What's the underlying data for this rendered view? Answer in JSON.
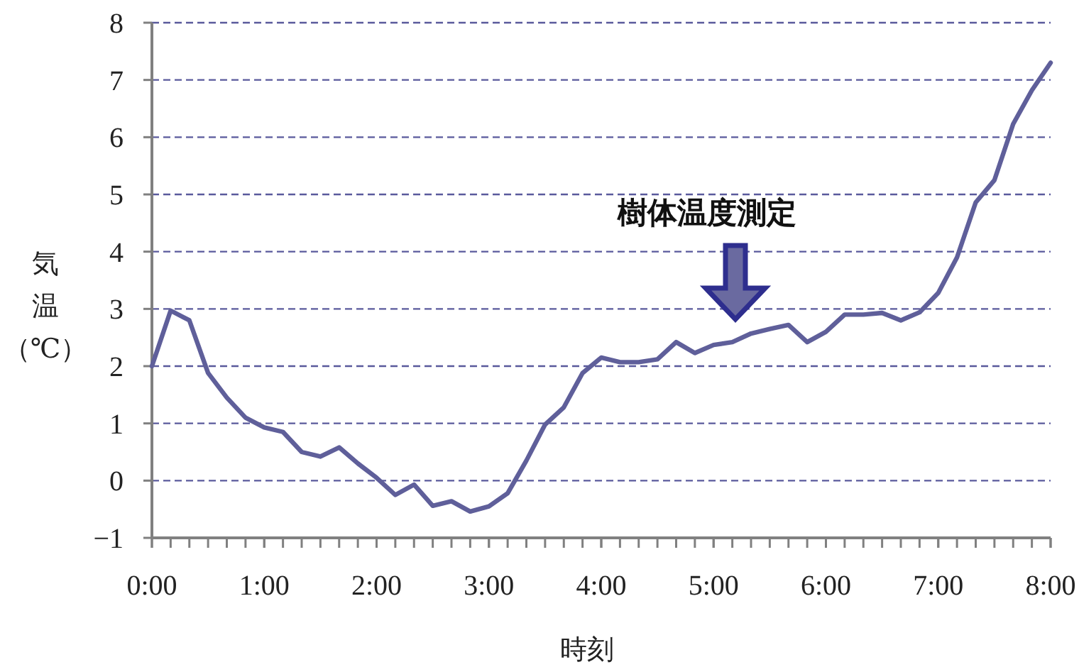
{
  "chart_data": {
    "type": "line",
    "xlabel": "時刻",
    "ylabel": "気温（℃）",
    "x": [
      0,
      0.1667,
      0.3333,
      0.5,
      0.6667,
      0.8333,
      1,
      1.1667,
      1.3333,
      1.5,
      1.6667,
      1.8333,
      2,
      2.1667,
      2.3333,
      2.5,
      2.6667,
      2.8333,
      3,
      3.1667,
      3.3333,
      3.5,
      3.6667,
      3.8333,
      4,
      4.1667,
      4.3333,
      4.5,
      4.6667,
      4.8333,
      5,
      5.1667,
      5.3333,
      5.5,
      5.6667,
      5.8333,
      6,
      6.1667,
      6.3333,
      6.5,
      6.6667,
      6.8333,
      7,
      7.1667,
      7.3333,
      7.5,
      7.6667,
      7.8333,
      8
    ],
    "series": [
      {
        "color": "#5f5f9a",
        "values": [
          2.0,
          2.97,
          2.8,
          1.88,
          1.45,
          1.1,
          0.93,
          0.85,
          0.5,
          0.42,
          0.58,
          0.3,
          0.05,
          -0.25,
          -0.07,
          -0.44,
          -0.36,
          -0.54,
          -0.45,
          -0.22,
          0.35,
          0.98,
          1.28,
          1.88,
          2.15,
          2.07,
          2.07,
          2.12,
          2.42,
          2.23,
          2.37,
          2.42,
          2.57,
          2.65,
          2.72,
          2.42,
          2.6,
          2.9,
          2.9,
          2.93,
          2.8,
          2.94,
          3.28,
          3.9,
          4.86,
          5.25,
          6.23,
          6.82,
          7.3
        ]
      }
    ],
    "xlim": [
      0,
      8
    ],
    "xticks": [
      {
        "value": 0,
        "label": "0:00"
      },
      {
        "value": 1,
        "label": "1:00"
      },
      {
        "value": 2,
        "label": "2:00"
      },
      {
        "value": 3,
        "label": "3:00"
      },
      {
        "value": 4,
        "label": "4:00"
      },
      {
        "value": 5,
        "label": "5:00"
      },
      {
        "value": 6,
        "label": "6:00"
      },
      {
        "value": 7,
        "label": "7:00"
      },
      {
        "value": 8,
        "label": "8:00"
      }
    ],
    "ylim": [
      -1,
      8
    ],
    "yticks": [
      -1,
      0,
      1,
      2,
      3,
      4,
      5,
      6,
      7,
      8
    ],
    "grid": "y",
    "marker": "none",
    "line_style": "solid",
    "annotations": [
      "樹体温度測定"
    ]
  }
}
